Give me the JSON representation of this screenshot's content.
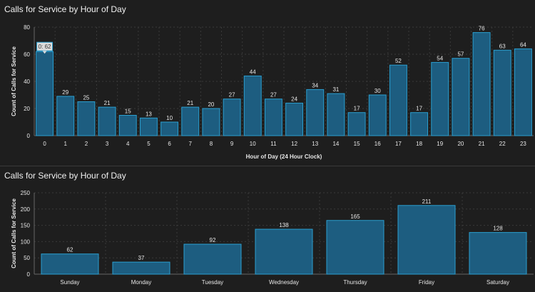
{
  "chart_data": [
    {
      "type": "bar",
      "title": "Calls for Service by Hour of Day",
      "xlabel": "Hour of Day (24 Hour Clock)",
      "ylabel": "Count of Calls for Service",
      "ylim": [
        0,
        80
      ],
      "yticks": [
        "0",
        "20",
        "40",
        "60",
        "80"
      ],
      "categories": [
        "0",
        "1",
        "2",
        "3",
        "4",
        "5",
        "6",
        "7",
        "8",
        "9",
        "10",
        "11",
        "12",
        "13",
        "14",
        "15",
        "16",
        "17",
        "18",
        "19",
        "20",
        "21",
        "22",
        "23"
      ],
      "values": [
        62,
        29,
        25,
        21,
        15,
        13,
        10,
        21,
        20,
        27,
        44,
        27,
        24,
        34,
        31,
        17,
        30,
        52,
        17,
        54,
        57,
        76,
        63,
        64
      ],
      "tooltip": "0: 62",
      "grid": true
    },
    {
      "type": "bar",
      "title": "Calls for Service by Hour of Day",
      "xlabel": "",
      "ylabel": "Count of Calls for Service",
      "ylim": [
        0,
        250
      ],
      "yticks": [
        "0",
        "50",
        "100",
        "150",
        "200",
        "250"
      ],
      "categories": [
        "Sunday",
        "Monday",
        "Tuesday",
        "Wednesday",
        "Thursday",
        "Friday",
        "Saturday"
      ],
      "values": [
        62,
        37,
        92,
        138,
        165,
        211,
        128
      ],
      "grid": true
    }
  ],
  "colors": {
    "bar_fill": "#1d5d80",
    "bar_stroke": "#2a9fd0",
    "grid": "#3a3a3a",
    "axis": "#666666",
    "label": "#e6e6e6",
    "tooltip_bg": "#dcdcdc",
    "tooltip_border": "#2a9fd0"
  }
}
